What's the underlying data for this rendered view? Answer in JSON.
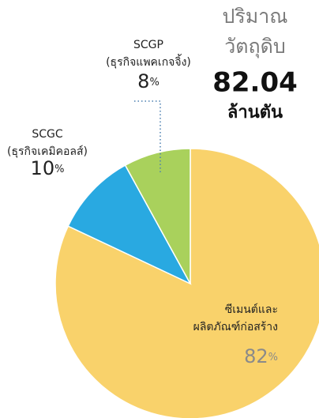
{
  "chart_data": {
    "type": "pie",
    "title_lines": [
      "ปริมาณ",
      "วัตถุดิบ"
    ],
    "total": "82.04",
    "total_unit": "ล้านตัน",
    "categories": [
      [
        "ซีเมนต์และ",
        "ผลิตภัณฑ์ก่อสร้าง"
      ],
      [
        "SCGC",
        "(ธุรกิจเคมิคอลส์)"
      ],
      [
        "SCGP",
        "(ธุรกิจแพคเกจจิ้ง)"
      ]
    ],
    "values": [
      82,
      10,
      8
    ],
    "unit": "%",
    "colors": [
      "#f9d26b",
      "#29a9e1",
      "#a9d15c"
    ]
  }
}
